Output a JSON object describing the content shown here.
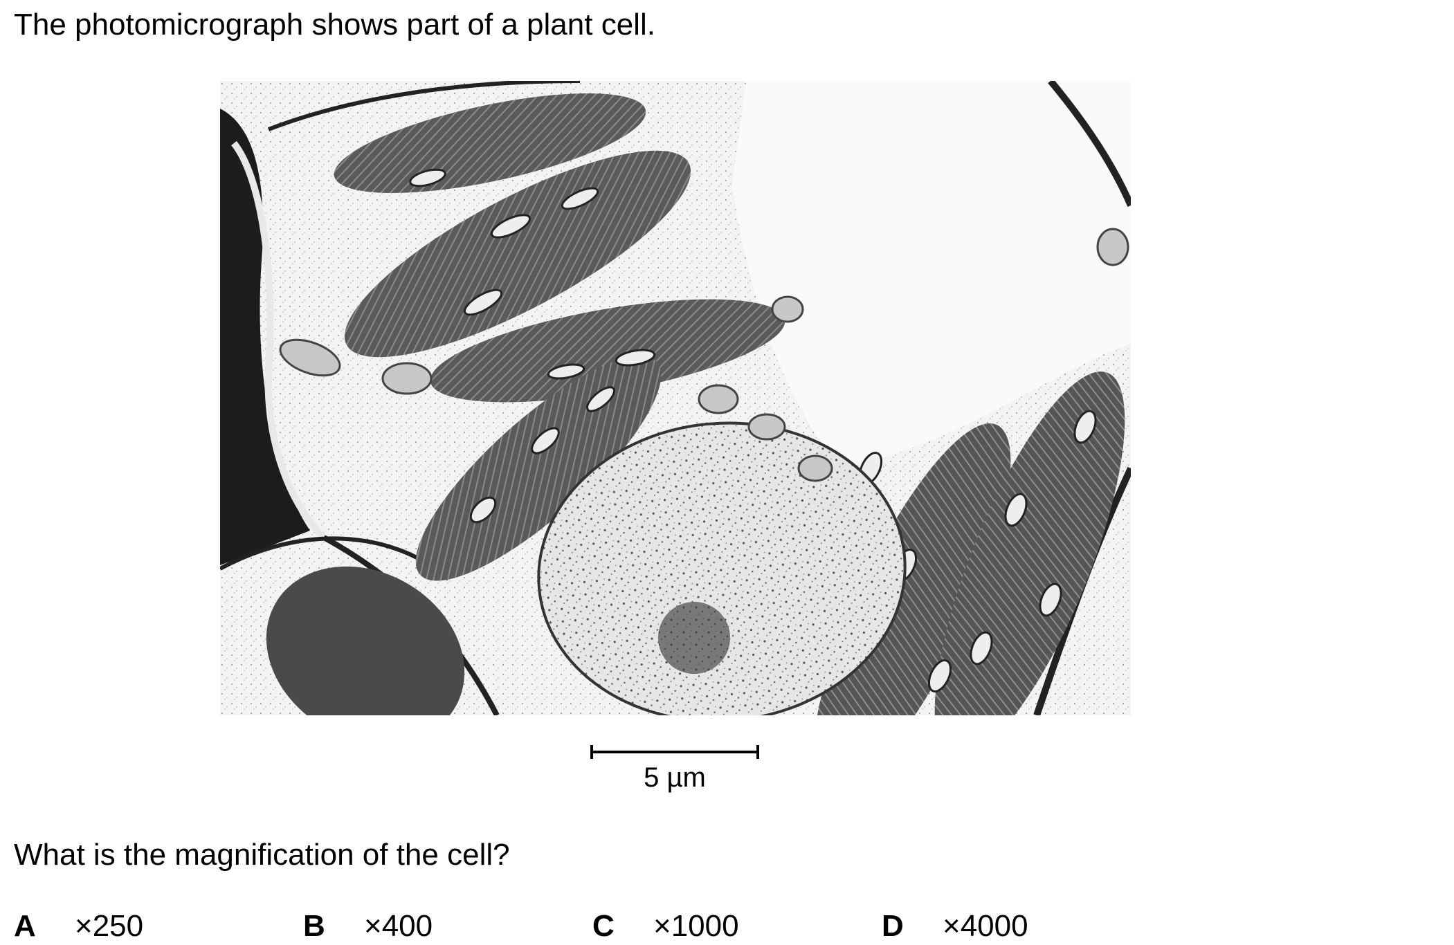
{
  "intro": "The photomicrograph shows part of a plant cell.",
  "figure": {
    "scale_bar_label": "5 µm"
  },
  "question": "What is the magnification of the cell?",
  "options": [
    {
      "letter": "A",
      "value": "×250"
    },
    {
      "letter": "B",
      "value": "×400"
    },
    {
      "letter": "C",
      "value": "×1000"
    },
    {
      "letter": "D",
      "value": "×4000"
    }
  ]
}
